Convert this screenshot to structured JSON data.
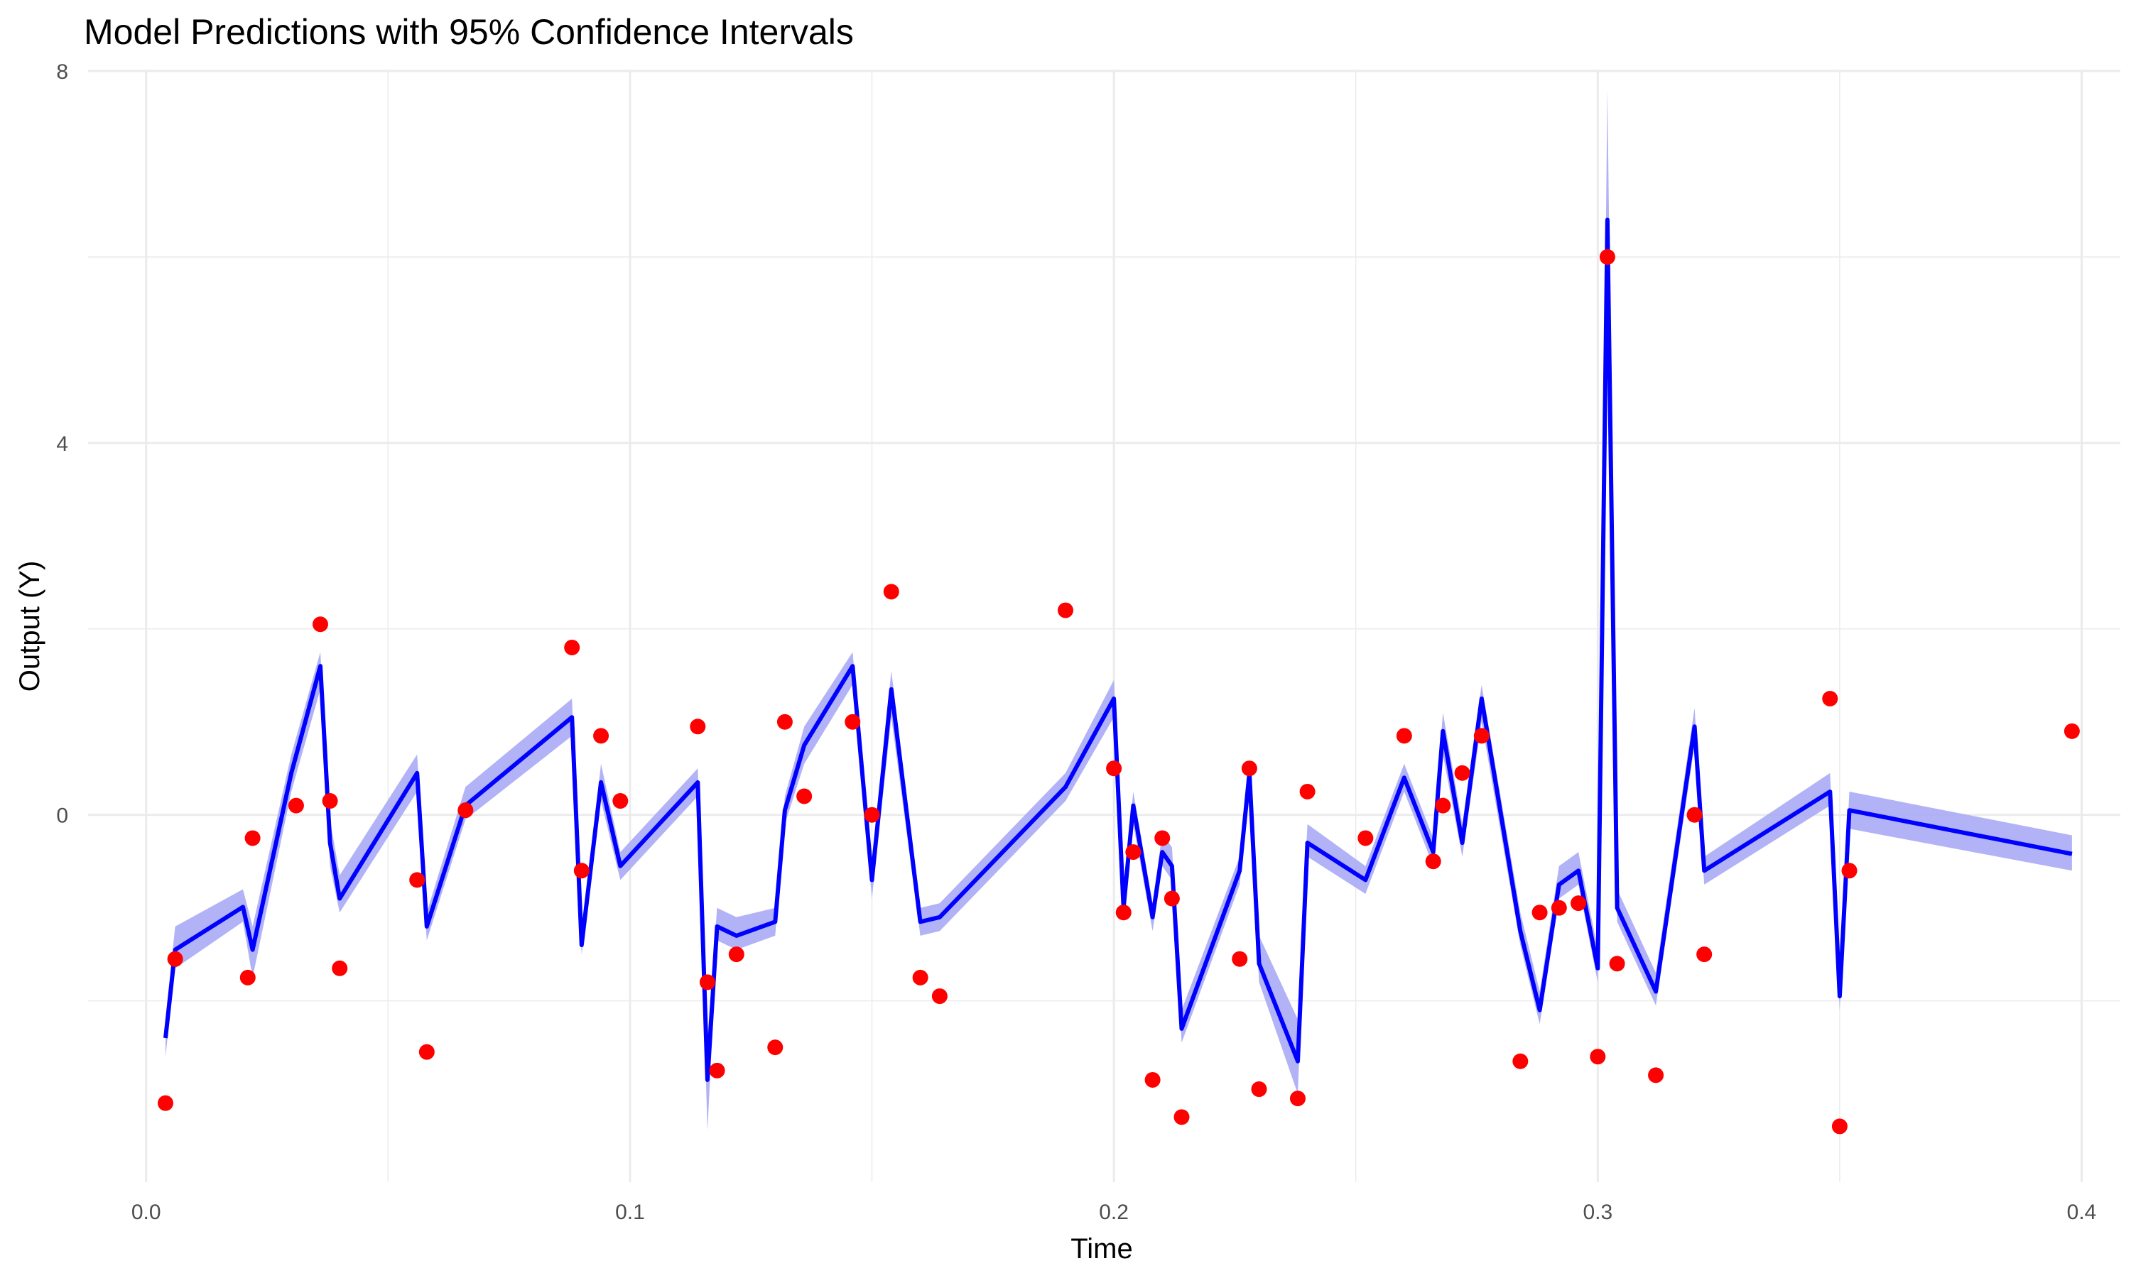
{
  "chart_data": {
    "type": "line",
    "title": "Model Predictions with 95% Confidence Intervals",
    "xlabel": "Time",
    "ylabel": "Output (Y)",
    "xlim": [
      -0.012,
      0.408
    ],
    "ylim": [
      -3.95,
      8.0
    ],
    "x_ticks": [
      0.0,
      0.1,
      0.2,
      0.3,
      0.4
    ],
    "x_tick_labels": [
      "0.0",
      "0.1",
      "0.2",
      "0.3",
      "0.4"
    ],
    "y_ticks": [
      0,
      4,
      8
    ],
    "y_tick_labels": [
      "0",
      "4",
      "8"
    ],
    "grid": true,
    "legend": "none",
    "colors": {
      "prediction_line": "#0000ff",
      "confidence_band": "#aaaaf5",
      "observed_points": "#ff0000",
      "grid": "#ebebeb"
    },
    "series": [
      {
        "kind": "line",
        "x": [
          0.004,
          0.006,
          0.02,
          0.022,
          0.03,
          0.036,
          0.038,
          0.04,
          0.056,
          0.058,
          0.066,
          0.088,
          0.09,
          0.094,
          0.098,
          0.114,
          0.116,
          0.118,
          0.122,
          0.13,
          0.132,
          0.136,
          0.146,
          0.15,
          0.154,
          0.16,
          0.164,
          0.19,
          0.2,
          0.202,
          0.204,
          0.208,
          0.21,
          0.212,
          0.214,
          0.226,
          0.228,
          0.23,
          0.238,
          0.24,
          0.252,
          0.26,
          0.266,
          0.268,
          0.272,
          0.276,
          0.284,
          0.288,
          0.292,
          0.296,
          0.3,
          0.302,
          0.304,
          0.312,
          0.32,
          0.322,
          0.348,
          0.35,
          0.352,
          0.398
        ],
        "y": [
          -2.4,
          -1.45,
          -0.99,
          -1.45,
          0.45,
          1.6,
          -0.3,
          -0.9,
          0.45,
          -1.2,
          0.1,
          1.05,
          -1.4,
          0.35,
          -0.55,
          0.35,
          -2.85,
          -1.2,
          -1.3,
          -1.15,
          0.05,
          0.75,
          1.6,
          -0.7,
          1.35,
          -1.15,
          -1.1,
          0.3,
          1.25,
          -1.0,
          0.1,
          -1.1,
          -0.4,
          -0.55,
          -2.3,
          -0.6,
          0.45,
          -1.6,
          -2.65,
          -0.3,
          -0.7,
          0.4,
          -0.4,
          0.9,
          -0.3,
          1.25,
          -1.25,
          -2.1,
          -0.75,
          -0.6,
          -1.65,
          6.4,
          -1.0,
          -1.9,
          0.95,
          -0.6,
          0.25,
          -1.95,
          0.05,
          -0.42
        ],
        "ci_lower": [
          -2.6,
          -1.65,
          -1.15,
          -1.75,
          0.25,
          1.35,
          -0.55,
          -1.05,
          0.25,
          -1.35,
          -0.05,
          0.85,
          -1.5,
          0.15,
          -0.7,
          0.2,
          -3.4,
          -1.35,
          -1.45,
          -1.3,
          -0.1,
          0.55,
          1.4,
          -0.9,
          1.05,
          -1.3,
          -1.25,
          0.15,
          1.05,
          -1.15,
          -0.1,
          -1.25,
          -0.55,
          -0.7,
          -2.45,
          -0.75,
          0.2,
          -1.8,
          -3.0,
          -0.45,
          -0.85,
          0.25,
          -0.55,
          0.65,
          -0.45,
          1.0,
          -1.4,
          -2.25,
          -0.9,
          -0.75,
          -1.8,
          5.0,
          -1.15,
          -2.05,
          0.75,
          -0.75,
          0.1,
          -2.1,
          -0.15,
          -0.6
        ],
        "ci_upper": [
          -2.2,
          -1.2,
          -0.8,
          -1.2,
          0.65,
          1.75,
          -0.05,
          -0.65,
          0.65,
          -1.05,
          0.3,
          1.25,
          -1.25,
          0.55,
          -0.4,
          0.5,
          -2.4,
          -1.0,
          -1.1,
          -1.0,
          0.2,
          0.95,
          1.75,
          -0.5,
          1.55,
          -1.0,
          -0.95,
          0.45,
          1.45,
          -0.8,
          0.25,
          -0.95,
          -0.2,
          -0.35,
          -2.1,
          -0.45,
          0.6,
          -1.3,
          -2.2,
          -0.1,
          -0.55,
          0.55,
          -0.25,
          1.1,
          -0.1,
          1.4,
          -1.05,
          -1.9,
          -0.55,
          -0.4,
          -1.45,
          7.8,
          -0.8,
          -1.7,
          1.15,
          -0.45,
          0.45,
          -1.75,
          0.25,
          -0.22
        ]
      },
      {
        "kind": "scatter",
        "x": [
          0.004,
          0.006,
          0.021,
          0.022,
          0.031,
          0.036,
          0.038,
          0.04,
          0.056,
          0.058,
          0.066,
          0.088,
          0.09,
          0.094,
          0.098,
          0.114,
          0.116,
          0.118,
          0.122,
          0.13,
          0.132,
          0.136,
          0.146,
          0.15,
          0.154,
          0.16,
          0.164,
          0.19,
          0.2,
          0.202,
          0.204,
          0.208,
          0.21,
          0.212,
          0.214,
          0.226,
          0.228,
          0.23,
          0.238,
          0.24,
          0.252,
          0.26,
          0.266,
          0.268,
          0.272,
          0.276,
          0.284,
          0.288,
          0.292,
          0.296,
          0.3,
          0.302,
          0.304,
          0.312,
          0.32,
          0.322,
          0.348,
          0.35,
          0.352,
          0.398
        ],
        "y": [
          -3.1,
          -1.55,
          -1.75,
          -0.25,
          0.1,
          2.05,
          0.15,
          -1.65,
          -0.7,
          -2.55,
          0.05,
          1.8,
          -0.6,
          0.85,
          0.15,
          0.95,
          -1.8,
          -2.75,
          -1.5,
          -2.5,
          1.0,
          0.2,
          1.0,
          0.0,
          2.4,
          -1.75,
          -1.95,
          2.2,
          0.5,
          -1.05,
          -0.4,
          -2.85,
          -0.25,
          -0.9,
          -3.25,
          -1.55,
          0.5,
          -2.95,
          -3.05,
          0.25,
          -0.25,
          0.85,
          -0.5,
          0.1,
          0.45,
          0.85,
          -2.65,
          -1.05,
          -1.0,
          -0.95,
          -2.6,
          6.0,
          -1.6,
          -2.8,
          0.0,
          -1.5,
          1.25,
          -3.35,
          -0.6,
          0.9
        ]
      }
    ]
  }
}
